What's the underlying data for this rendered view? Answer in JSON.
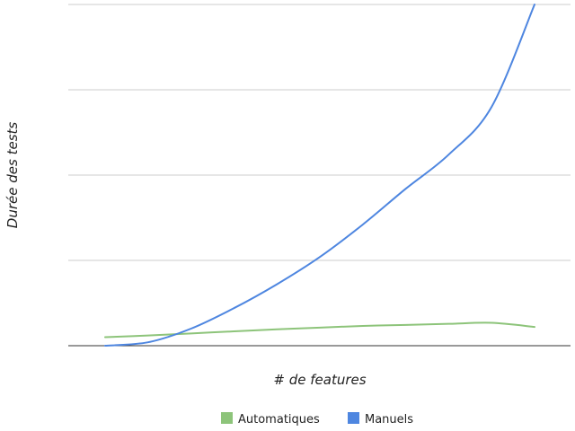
{
  "chart_data": {
    "type": "line",
    "title": "",
    "xlabel": "# de features",
    "ylabel": "Durée des tests",
    "x": [
      0,
      1,
      2,
      3,
      4,
      5,
      6,
      7,
      8,
      9,
      10
    ],
    "xlim": [
      0,
      10
    ],
    "ylim": [
      0,
      100
    ],
    "grid": true,
    "show_tick_labels": false,
    "legend_position": "bottom",
    "series": [
      {
        "name": "Automatiques",
        "color": "#8dc47a",
        "values": [
          2.5,
          3.0,
          3.6,
          4.2,
          4.8,
          5.3,
          5.8,
          6.1,
          6.4,
          6.7,
          5.5
        ]
      },
      {
        "name": "Manuels",
        "color": "#4e86e0",
        "values": [
          0.0,
          1.0,
          5.0,
          11.0,
          18.0,
          26.0,
          35.5,
          46.0,
          56.0,
          70.0,
          100.0
        ]
      }
    ]
  }
}
